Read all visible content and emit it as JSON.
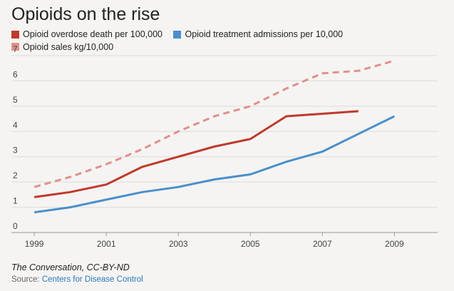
{
  "title": "Opioids on the rise",
  "caption": "The Conversation, CC-BY-ND",
  "source": {
    "prefix": "Source: ",
    "link_text": "Centers for Disease Control"
  },
  "chart_data": {
    "type": "line",
    "title": "Opioids on the rise",
    "xlabel": "",
    "ylabel": "",
    "xlim": [
      1998.8,
      2010.2
    ],
    "ylim": [
      0,
      7
    ],
    "y_ticks": [
      0,
      1,
      2,
      3,
      4,
      5,
      6,
      7
    ],
    "x_ticks": [
      1999,
      2001,
      2003,
      2005,
      2007,
      2009
    ],
    "grid": true,
    "legend_placement": "top-left",
    "x": [
      1999,
      2000,
      2001,
      2002,
      2003,
      2004,
      2005,
      2006,
      2007,
      2008,
      2009
    ],
    "series": [
      {
        "name": "Opioid overdose death per 100,000",
        "color": "#c0392b",
        "dashed": false,
        "values": [
          1.4,
          1.6,
          1.9,
          2.6,
          3.0,
          3.4,
          3.7,
          4.6,
          4.7,
          4.8,
          null
        ]
      },
      {
        "name": "Opioid treatment admissions per 10,000",
        "color": "#4a8fcb",
        "dashed": false,
        "values": [
          0.8,
          1.0,
          1.3,
          1.6,
          1.8,
          2.1,
          2.3,
          2.8,
          3.2,
          3.9,
          4.6
        ]
      },
      {
        "name": "Opioid sales kg/10,000",
        "color": "#e0918a",
        "dashed": true,
        "values": [
          1.8,
          2.2,
          2.7,
          3.3,
          4.0,
          4.6,
          5.0,
          5.7,
          6.3,
          6.4,
          6.8
        ]
      }
    ]
  }
}
